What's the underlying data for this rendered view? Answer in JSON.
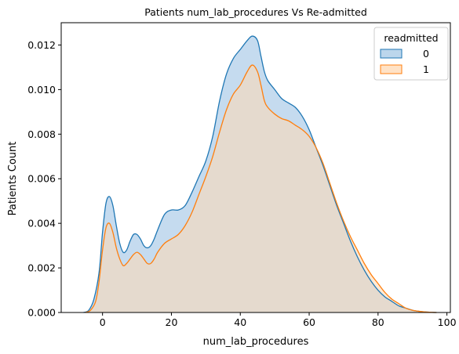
{
  "chart_data": {
    "type": "area",
    "title": "Patients num_lab_procedures Vs Re-admitted",
    "xlabel": "num_lab_procedures",
    "ylabel": "Patients Count",
    "xlim": [
      -12,
      101
    ],
    "ylim": [
      0,
      0.013
    ],
    "xticks": [
      0,
      20,
      40,
      60,
      80,
      100
    ],
    "yticks": [
      0.0,
      0.002,
      0.004,
      0.006,
      0.008,
      0.01,
      0.012
    ],
    "ytick_labels": [
      "0.000",
      "0.002",
      "0.004",
      "0.006",
      "0.008",
      "0.010",
      "0.012"
    ],
    "grid": false,
    "legend": {
      "title": "readmitted",
      "placement": "top-right"
    },
    "series": [
      {
        "name": "0",
        "color": "#1f77b4",
        "fill": "#a6c8e6",
        "points": [
          [
            -5.5,
            0.0
          ],
          [
            -4,
            0.0001
          ],
          [
            -2.5,
            0.0006
          ],
          [
            -1,
            0.0018
          ],
          [
            0,
            0.0036
          ],
          [
            1,
            0.0049
          ],
          [
            2,
            0.0052
          ],
          [
            3,
            0.0048
          ],
          [
            4,
            0.0039
          ],
          [
            5,
            0.0031
          ],
          [
            6,
            0.0027
          ],
          [
            7,
            0.0028
          ],
          [
            8,
            0.0032
          ],
          [
            9,
            0.0035
          ],
          [
            10,
            0.0035
          ],
          [
            11,
            0.0033
          ],
          [
            12,
            0.003
          ],
          [
            13,
            0.0029
          ],
          [
            14,
            0.003
          ],
          [
            15,
            0.0033
          ],
          [
            16,
            0.0037
          ],
          [
            18,
            0.0044
          ],
          [
            20,
            0.0046
          ],
          [
            22,
            0.0046
          ],
          [
            24,
            0.0048
          ],
          [
            26,
            0.0054
          ],
          [
            28,
            0.0061
          ],
          [
            30,
            0.0068
          ],
          [
            32,
            0.0079
          ],
          [
            34,
            0.0095
          ],
          [
            36,
            0.0107
          ],
          [
            38,
            0.0114
          ],
          [
            40,
            0.0118
          ],
          [
            42,
            0.0122
          ],
          [
            43.5,
            0.0124
          ],
          [
            45,
            0.0122
          ],
          [
            46,
            0.0115
          ],
          [
            47,
            0.0108
          ],
          [
            48,
            0.0104
          ],
          [
            50,
            0.01
          ],
          [
            52,
            0.0096
          ],
          [
            54,
            0.0094
          ],
          [
            56,
            0.0092
          ],
          [
            58,
            0.0088
          ],
          [
            60,
            0.0082
          ],
          [
            62,
            0.0074
          ],
          [
            64,
            0.0066
          ],
          [
            66,
            0.0057
          ],
          [
            68,
            0.0048
          ],
          [
            70,
            0.004
          ],
          [
            72,
            0.0032
          ],
          [
            74,
            0.0025
          ],
          [
            76,
            0.0019
          ],
          [
            78,
            0.0014
          ],
          [
            80,
            0.001
          ],
          [
            82,
            0.0007
          ],
          [
            84,
            0.0005
          ],
          [
            86,
            0.0003
          ],
          [
            88,
            0.0002
          ],
          [
            90,
            0.0001
          ],
          [
            92,
            5e-05
          ],
          [
            94,
            2e-05
          ],
          [
            97,
            0.0
          ]
        ]
      },
      {
        "name": "1",
        "color": "#ff7f0e",
        "fill": "#ffd8b3",
        "points": [
          [
            -5,
            0.0
          ],
          [
            -3.5,
            0.0001
          ],
          [
            -2,
            0.0005
          ],
          [
            -1,
            0.0014
          ],
          [
            0,
            0.0028
          ],
          [
            1,
            0.0038
          ],
          [
            2,
            0.004
          ],
          [
            3,
            0.0036
          ],
          [
            4,
            0.0029
          ],
          [
            5,
            0.0024
          ],
          [
            6,
            0.0021
          ],
          [
            7,
            0.0022
          ],
          [
            8,
            0.0024
          ],
          [
            9,
            0.0026
          ],
          [
            10,
            0.0027
          ],
          [
            11,
            0.0026
          ],
          [
            12,
            0.0024
          ],
          [
            13,
            0.0022
          ],
          [
            14,
            0.0022
          ],
          [
            15,
            0.0024
          ],
          [
            16,
            0.0027
          ],
          [
            18,
            0.0031
          ],
          [
            20,
            0.0033
          ],
          [
            22,
            0.0035
          ],
          [
            24,
            0.0039
          ],
          [
            26,
            0.0045
          ],
          [
            28,
            0.0053
          ],
          [
            30,
            0.0061
          ],
          [
            32,
            0.007
          ],
          [
            34,
            0.0081
          ],
          [
            36,
            0.0091
          ],
          [
            38,
            0.0098
          ],
          [
            40,
            0.0102
          ],
          [
            42,
            0.0108
          ],
          [
            43.5,
            0.0111
          ],
          [
            45,
            0.0108
          ],
          [
            46,
            0.0102
          ],
          [
            47,
            0.0095
          ],
          [
            48,
            0.0092
          ],
          [
            50,
            0.0089
          ],
          [
            52,
            0.0087
          ],
          [
            54,
            0.0086
          ],
          [
            56,
            0.0084
          ],
          [
            58,
            0.0082
          ],
          [
            60,
            0.0079
          ],
          [
            62,
            0.0074
          ],
          [
            64,
            0.0067
          ],
          [
            66,
            0.0058
          ],
          [
            68,
            0.0049
          ],
          [
            70,
            0.0041
          ],
          [
            72,
            0.0034
          ],
          [
            74,
            0.0028
          ],
          [
            76,
            0.0022
          ],
          [
            78,
            0.0017
          ],
          [
            80,
            0.0013
          ],
          [
            82,
            0.0009
          ],
          [
            84,
            0.0006
          ],
          [
            86,
            0.0004
          ],
          [
            88,
            0.0002
          ],
          [
            90,
            0.0001
          ],
          [
            92,
            5e-05
          ],
          [
            94,
            2e-05
          ],
          [
            97,
            0.0
          ]
        ]
      }
    ]
  }
}
